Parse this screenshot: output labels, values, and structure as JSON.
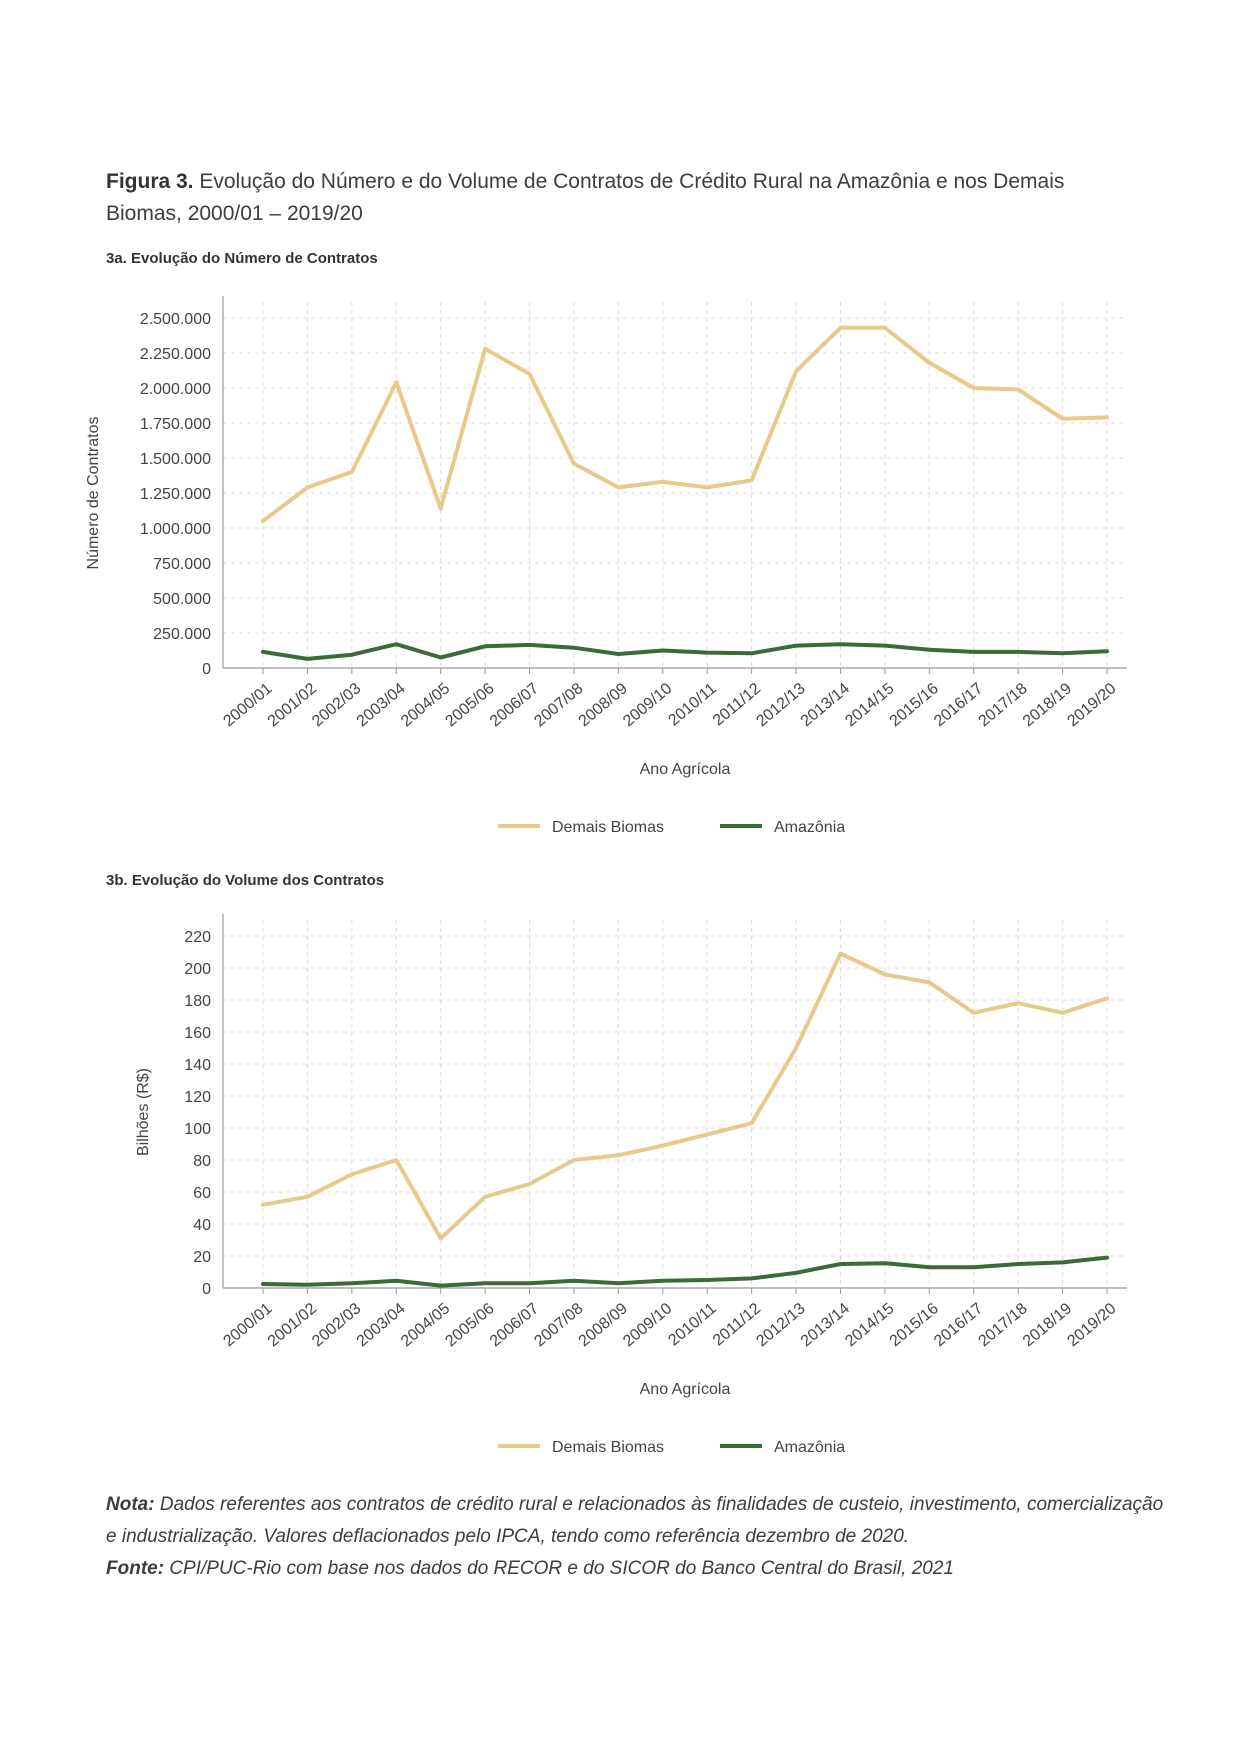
{
  "figure": {
    "label": "Figura 3.",
    "title": "Evolução do Número e do Volume de Contratos de Crédito Rural na Amazônia e nos Demais Biomas, 2000/01 – 2019/20"
  },
  "colors": {
    "demais": "#e8c98a",
    "amazonia": "#3b6b3a",
    "grid": "#dcdcdc",
    "axis": "#999999"
  },
  "chart_data": [
    {
      "type": "line",
      "title": "3a. Evolução do Número de Contratos",
      "xlabel": "Ano Agrícola",
      "ylabel": "Número de Contratos",
      "ylim": [
        0,
        2500000
      ],
      "yticks": [
        0,
        250000,
        500000,
        750000,
        1000000,
        1250000,
        1500000,
        1750000,
        2000000,
        2250000,
        2500000
      ],
      "ytick_labels": [
        "0",
        "250.000",
        "500.000",
        "750.000",
        "1.000.000",
        "1.250.000",
        "1.500.000",
        "1.750.000",
        "2.000.000",
        "2.250.000",
        "2.500.000"
      ],
      "categories": [
        "2000/01",
        "2001/02",
        "2002/03",
        "2003/04",
        "2004/05",
        "2005/06",
        "2006/07",
        "2007/08",
        "2008/09",
        "2009/10",
        "2010/11",
        "2011/12",
        "2012/13",
        "2013/14",
        "2014/15",
        "2015/16",
        "2016/17",
        "2017/18",
        "2018/19",
        "2019/20"
      ],
      "series": [
        {
          "name": "Demais Biomas",
          "color": "#e8c98a",
          "values": [
            1050000,
            1290000,
            1400000,
            2040000,
            1140000,
            2280000,
            2100000,
            1460000,
            1290000,
            1330000,
            1290000,
            1340000,
            2120000,
            2430000,
            2430000,
            2180000,
            2000000,
            1990000,
            1780000,
            1790000
          ]
        },
        {
          "name": "Amazônia",
          "color": "#3b6b3a",
          "values": [
            115000,
            65000,
            95000,
            170000,
            75000,
            155000,
            165000,
            145000,
            100000,
            125000,
            110000,
            105000,
            160000,
            170000,
            160000,
            130000,
            115000,
            115000,
            105000,
            120000
          ]
        }
      ],
      "legend": "bottom-center",
      "grid": true
    },
    {
      "type": "line",
      "title": "3b. Evolução do Volume dos Contratos",
      "xlabel": "Ano Agrícola",
      "ylabel": "Bilhões (R$)",
      "ylim": [
        0,
        220
      ],
      "yticks": [
        0,
        20,
        40,
        60,
        80,
        100,
        120,
        140,
        160,
        180,
        200,
        220
      ],
      "ytick_labels": [
        "0",
        "20",
        "40",
        "60",
        "80",
        "100",
        "120",
        "140",
        "160",
        "180",
        "200",
        "220"
      ],
      "categories": [
        "2000/01",
        "2001/02",
        "2002/03",
        "2003/04",
        "2004/05",
        "2005/06",
        "2006/07",
        "2007/08",
        "2008/09",
        "2009/10",
        "2010/11",
        "2011/12",
        "2012/13",
        "2013/14",
        "2014/15",
        "2015/16",
        "2016/17",
        "2017/18",
        "2018/19",
        "2019/20"
      ],
      "series": [
        {
          "name": "Demais Biomas",
          "color": "#e8c98a",
          "values": [
            52,
            57,
            71,
            80,
            31,
            57,
            65,
            80,
            83,
            89,
            96,
            103,
            150,
            209,
            196,
            191,
            172,
            178,
            172,
            181
          ]
        },
        {
          "name": "Amazônia",
          "color": "#3b6b3a",
          "values": [
            2.5,
            2,
            3,
            4.5,
            1.5,
            3,
            3,
            4.5,
            3,
            4.5,
            5,
            6,
            9.5,
            15,
            15.5,
            13,
            13,
            15,
            16,
            19
          ]
        }
      ],
      "legend": "bottom-center",
      "grid": true
    }
  ],
  "note": {
    "nota_label": "Nota:",
    "nota_text": "Dados referentes aos contratos de crédito rural e relacionados às finalidades de custeio, investimento, comercialização e industrialização. Valores deflacionados pelo IPCA, tendo como referência dezembro de 2020.",
    "fonte_label": "Fonte:",
    "fonte_text": "CPI/PUC-Rio com base nos dados do RECOR e do SICOR do Banco Central do Brasil, 2021"
  }
}
